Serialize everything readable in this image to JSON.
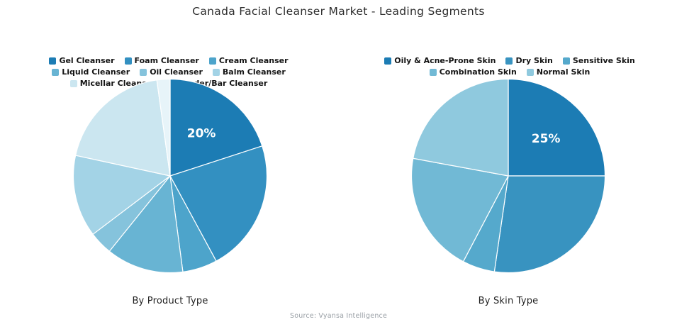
{
  "title": "Canada Facial Cleanser Market - Leading Segments",
  "source": "Source: Vyansa Intelligence",
  "chart_data": [
    {
      "type": "pie",
      "title": "By Product Type",
      "categories": [
        "Gel Cleanser",
        "Foam Cleanser",
        "Cream Cleanser",
        "Liquid Cleanser",
        "Oil Cleanser",
        "Balm Cleanser",
        "Micellar Cleanser",
        "Powder/Bar Cleanser"
      ],
      "values": [
        20,
        22.1,
        5.8,
        12.9,
        3.9,
        13.7,
        19.4,
        2.2
      ],
      "colors": [
        "#1c7cb4",
        "#3390c1",
        "#4da4cb",
        "#68b4d3",
        "#85c3dc",
        "#a3d3e6",
        "#cbe6f0",
        "#e7f4f9"
      ],
      "data_labels": [
        {
          "index": 0,
          "text": "20%"
        }
      ],
      "start_angle_deg": 0,
      "direction": "clockwise",
      "legend_position": "top",
      "border_color": "#ffffff"
    },
    {
      "type": "pie",
      "title": "By Skin Type",
      "categories": [
        "Oily & Acne-Prone Skin",
        "Dry Skin",
        "Sensitive Skin",
        "Combination Skin",
        "Normal Skin"
      ],
      "values": [
        25,
        27.3,
        5.4,
        20.2,
        22.1
      ],
      "colors": [
        "#1c7cb4",
        "#3893c0",
        "#55a9cc",
        "#71b9d5",
        "#8fc9de"
      ],
      "data_labels": [
        {
          "index": 0,
          "text": "25%"
        }
      ],
      "start_angle_deg": 0,
      "direction": "clockwise",
      "legend_position": "top",
      "border_color": "#ffffff"
    }
  ]
}
